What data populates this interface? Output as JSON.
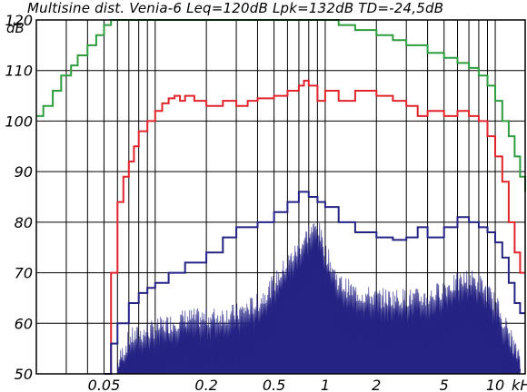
{
  "chart_data": {
    "type": "line",
    "title": "Multisine dist. Venia-6 Leq=120dB Lpk=132dB TD=-24,5dB",
    "ylabel": "dB",
    "xlabel": "",
    "x_scale": "log",
    "x_unit_label": "kHz",
    "xlim": [
      0.02,
      15
    ],
    "ylim": [
      50,
      120
    ],
    "grid": true,
    "legend": "none",
    "x_ticks": [
      {
        "value": 0.05,
        "label": "0.05"
      },
      {
        "value": 0.2,
        "label": "0.2"
      },
      {
        "value": 0.5,
        "label": "0.5"
      },
      {
        "value": 1,
        "label": "1"
      },
      {
        "value": 2,
        "label": "2"
      },
      {
        "value": 5,
        "label": "5"
      },
      {
        "value": 10,
        "label": "10"
      }
    ],
    "y_ticks": [
      {
        "value": 50,
        "label": "50"
      },
      {
        "value": 60,
        "label": "60"
      },
      {
        "value": 70,
        "label": "70"
      },
      {
        "value": 80,
        "label": "80"
      },
      {
        "value": 90,
        "label": "90"
      },
      {
        "value": 100,
        "label": "100"
      },
      {
        "value": 110,
        "label": "110"
      },
      {
        "value": 120,
        "label": "120"
      }
    ],
    "series": [
      {
        "color": "#2e9d3e",
        "style": "step",
        "x": [
          0.02,
          0.022,
          0.025,
          0.028,
          0.032,
          0.035,
          0.04,
          0.045,
          0.05,
          0.055,
          0.1,
          0.5,
          1.0,
          1.2,
          1.5,
          2.0,
          2.5,
          3.0,
          4.0,
          5.0,
          6.0,
          7.0,
          8.0,
          9.0,
          10.0,
          11.0,
          12.0,
          13.0,
          14.0,
          15.0
        ],
        "y": [
          101,
          103,
          106,
          109,
          111,
          113,
          115,
          117,
          119,
          120,
          120,
          120,
          120,
          119,
          118,
          117,
          116,
          115,
          113.5,
          112.5,
          111.5,
          110.5,
          109,
          107,
          104,
          100,
          97,
          93,
          89,
          86
        ]
      },
      {
        "color": "#e0242c",
        "style": "step",
        "x": [
          0.05,
          0.055,
          0.06,
          0.065,
          0.07,
          0.075,
          0.08,
          0.09,
          0.1,
          0.11,
          0.12,
          0.13,
          0.14,
          0.15,
          0.17,
          0.2,
          0.25,
          0.3,
          0.35,
          0.4,
          0.5,
          0.6,
          0.7,
          0.75,
          0.8,
          0.9,
          1.0,
          1.2,
          1.5,
          2.0,
          2.5,
          3.0,
          3.5,
          4.0,
          5.0,
          6.0,
          7.0,
          8.0,
          9.0,
          10.0,
          11.0,
          12.0,
          13.0,
          14.0
        ],
        "y": [
          50,
          70,
          84,
          89,
          92,
          95,
          98,
          100,
          102,
          103.5,
          104.5,
          105,
          104,
          105,
          104,
          103,
          104,
          103,
          104,
          104.5,
          105,
          106,
          107,
          108,
          107,
          104,
          106,
          104,
          106,
          105,
          104,
          103,
          101,
          102,
          101,
          102,
          101,
          100,
          97,
          93,
          88,
          80,
          74,
          70
        ]
      },
      {
        "color": "#252384",
        "style": "step",
        "x": [
          0.05,
          0.055,
          0.06,
          0.07,
          0.08,
          0.09,
          0.1,
          0.12,
          0.15,
          0.2,
          0.25,
          0.3,
          0.4,
          0.5,
          0.6,
          0.7,
          0.8,
          0.9,
          1.0,
          1.2,
          1.5,
          2.0,
          2.5,
          3.0,
          3.5,
          4.0,
          5.0,
          6.0,
          7.0,
          8.0,
          9.0,
          10.0,
          11.0,
          12.0,
          13.0,
          14.0
        ],
        "y": [
          50,
          56,
          60,
          64,
          66,
          67,
          68,
          70,
          72,
          74,
          77,
          79,
          80,
          82,
          84,
          86,
          85,
          84,
          83,
          80,
          78,
          77,
          76.5,
          77,
          79,
          77,
          79,
          81,
          80,
          79,
          78,
          76,
          73,
          68,
          64,
          62
        ]
      },
      {
        "color": "#252384",
        "style": "filled-spectrum",
        "x": [
          0.06,
          0.07,
          0.1,
          0.15,
          0.2,
          0.3,
          0.4,
          0.5,
          0.6,
          0.7,
          0.8,
          0.9,
          1.0,
          1.2,
          1.5,
          2.0,
          2.5,
          3.0,
          4.0,
          5.0,
          6.0,
          7.0,
          8.0,
          9.0,
          10.0,
          11.0,
          12.0,
          13.0,
          14.0
        ],
        "y": [
          50,
          55,
          57,
          59,
          59,
          60,
          62,
          66,
          70,
          73,
          76,
          77,
          72,
          66,
          64,
          63,
          63,
          63,
          63,
          65,
          66,
          67,
          66,
          64,
          62,
          59,
          56,
          53,
          50
        ]
      }
    ]
  }
}
